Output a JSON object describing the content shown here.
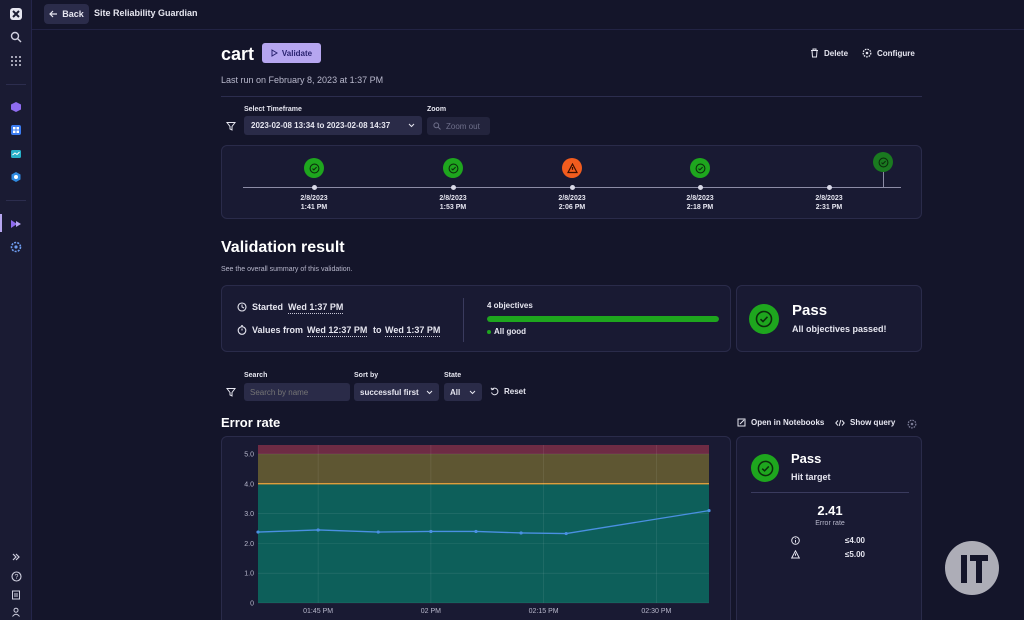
{
  "app": {
    "back_label": "Back",
    "title": "Site Reliability Guardian"
  },
  "header": {
    "title": "cart",
    "validate_label": "Validate",
    "last_run": "Last run on February 8, 2023 at 1:37 PM",
    "delete_label": "Delete",
    "configure_label": "Configure"
  },
  "filters": {
    "timeframe_label": "Select Timeframe",
    "timeframe_value": "2023-02-08 13:34 to 2023-02-08 14:37",
    "zoom_label": "Zoom",
    "zoom_out_label": "Zoom out"
  },
  "timeline": [
    {
      "date": "2/8/2023",
      "time": "1:41 PM",
      "status": "pass"
    },
    {
      "date": "2/8/2023",
      "time": "1:53 PM",
      "status": "pass"
    },
    {
      "date": "2/8/2023",
      "time": "2:06 PM",
      "status": "warning"
    },
    {
      "date": "2/8/2023",
      "time": "2:18 PM",
      "status": "pass"
    },
    {
      "date": "2/8/2023",
      "time": "2:31 PM",
      "status": "none"
    }
  ],
  "validation": {
    "title": "Validation result",
    "subtitle": "See the overall summary of this validation.",
    "started_label": "Started",
    "started_value": "Wed 1:37 PM",
    "values_from_label": "Values from",
    "values_from_start": "Wed 12:37 PM",
    "values_to_label": "to",
    "values_from_end": "Wed 1:37 PM",
    "objectives_count": "4 objectives",
    "objectives_status": "All good",
    "progress_fraction": 1.0,
    "result": "Pass",
    "result_detail": "All objectives passed!"
  },
  "search": {
    "search_label": "Search",
    "search_placeholder": "Search by name",
    "sort_label": "Sort by",
    "sort_value": "successful first",
    "state_label": "State",
    "state_value": "All",
    "reset_label": "Reset"
  },
  "objective": {
    "title": "Error rate",
    "open_notebooks_label": "Open in Notebooks",
    "show_query_label": "Show query",
    "result": "Pass",
    "result_detail": "Hit target",
    "value": "2.41",
    "value_label": "Error rate",
    "target_label": "≤4.00",
    "warning_label": "≤5.00"
  },
  "chart_data": {
    "type": "line",
    "x": [
      "01:41 PM",
      "01:45 PM",
      "01:53 PM",
      "02:00 PM",
      "02:06 PM",
      "02:12 PM",
      "02:18 PM",
      "02:31 PM"
    ],
    "x_ticks": [
      "01:45 PM",
      "02 PM",
      "02:15 PM",
      "02:30 PM"
    ],
    "y_ticks": [
      "0",
      "1.0",
      "2.0",
      "3.0",
      "4.0",
      "5.0"
    ],
    "series": [
      {
        "values": [
          2.38,
          2.45,
          2.38,
          2.4,
          2.4,
          2.35,
          2.33,
          3.1
        ]
      }
    ],
    "ylim": [
      0,
      5.3
    ],
    "thresholds": {
      "pass_max": 4.0,
      "warning_max": 5.0
    },
    "colors": {
      "line": "#4a90e2",
      "pass_band": "#0d5f5a",
      "warning_band": "#5e5632",
      "fail_band": "#6e2b44",
      "warning_line": "#f0a030"
    },
    "grid": true
  },
  "colors": {
    "pass": "#1ea61e",
    "warning": "#f25c1e",
    "accent": "#b6a6f0"
  }
}
